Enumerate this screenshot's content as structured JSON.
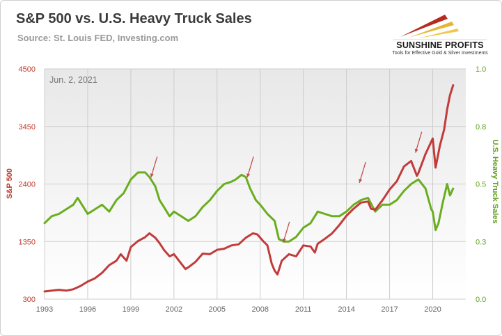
{
  "title": "S&P 500 vs. U.S. Heavy Truck Sales",
  "subtitle": "Source: St. Louis FED, Investing.com",
  "logo": {
    "name": "SUNSHINE PROFITS",
    "tagline": "Tools for Effective Gold & Silver Investments"
  },
  "colors": {
    "sp500": "#c23b3b",
    "trucks": "#6aad1f",
    "arrow": "#c0504d",
    "grid": "#cccccc",
    "left_axis_text": "#c0392b",
    "right_axis_text": "#5f9f1a"
  },
  "chart_data": {
    "type": "line",
    "annotation": "Jun. 2, 2021",
    "xlabel": "",
    "x_ticks": [
      "1993",
      "1996",
      "1999",
      "2002",
      "2005",
      "2008",
      "2011",
      "2014",
      "2017",
      "2020"
    ],
    "xlim": [
      1993,
      2022.3
    ],
    "y_left": {
      "label": "S&P 500",
      "ticks": [
        "300",
        "1350",
        "2400",
        "3450",
        "4500"
      ],
      "lim": [
        300,
        4500
      ]
    },
    "y_right": {
      "label": "U.S. Heavy Truck Sales",
      "ticks": [
        "0.0",
        "0.3",
        "0.5",
        "0.8",
        "1.0"
      ],
      "lim": [
        0,
        1.0
      ]
    },
    "grid": true,
    "series": [
      {
        "name": "S&P 500",
        "axis": "left",
        "x": [
          1993.0,
          1993.5,
          1994.0,
          1994.5,
          1995.0,
          1995.5,
          1996.0,
          1996.5,
          1997.0,
          1997.5,
          1998.0,
          1998.3,
          1998.7,
          1999.0,
          1999.5,
          2000.0,
          2000.3,
          2000.7,
          2001.0,
          2001.3,
          2001.7,
          2002.0,
          2002.5,
          2002.8,
          2003.0,
          2003.5,
          2004.0,
          2004.5,
          2005.0,
          2005.5,
          2006.0,
          2006.5,
          2007.0,
          2007.5,
          2007.8,
          2008.2,
          2008.5,
          2008.8,
          2009.0,
          2009.2,
          2009.5,
          2010.0,
          2010.5,
          2011.0,
          2011.5,
          2011.8,
          2012.0,
          2012.5,
          2013.0,
          2013.5,
          2014.0,
          2014.5,
          2015.0,
          2015.5,
          2015.7,
          2016.0,
          2016.5,
          2017.0,
          2017.5,
          2018.0,
          2018.5,
          2018.9,
          2019.0,
          2019.5,
          2020.0,
          2020.2,
          2020.5,
          2020.8,
          2021.0,
          2021.2,
          2021.42
        ],
        "values": [
          440,
          455,
          470,
          455,
          480,
          540,
          620,
          680,
          780,
          920,
          1000,
          1120,
          1000,
          1250,
          1360,
          1430,
          1500,
          1420,
          1320,
          1200,
          1080,
          1120,
          950,
          850,
          880,
          980,
          1130,
          1120,
          1200,
          1220,
          1280,
          1300,
          1420,
          1500,
          1480,
          1360,
          1280,
          950,
          820,
          750,
          1000,
          1120,
          1080,
          1280,
          1260,
          1150,
          1310,
          1400,
          1500,
          1650,
          1820,
          1950,
          2060,
          2080,
          1950,
          1930,
          2100,
          2300,
          2450,
          2720,
          2820,
          2550,
          2600,
          2950,
          3230,
          2700,
          3100,
          3400,
          3760,
          4020,
          4200
        ]
      },
      {
        "name": "U.S. Heavy Truck Sales",
        "axis": "right",
        "x": [
          1993.0,
          1993.5,
          1994.0,
          1994.5,
          1995.0,
          1995.3,
          1995.7,
          1996.0,
          1996.5,
          1997.0,
          1997.5,
          1998.0,
          1998.5,
          1999.0,
          1999.5,
          2000.0,
          2000.3,
          2000.7,
          2001.0,
          2001.3,
          2001.7,
          2002.0,
          2002.5,
          2003.0,
          2003.5,
          2004.0,
          2004.5,
          2005.0,
          2005.5,
          2006.0,
          2006.3,
          2006.7,
          2007.0,
          2007.3,
          2007.7,
          2008.0,
          2008.5,
          2009.0,
          2009.3,
          2009.7,
          2010.0,
          2010.5,
          2011.0,
          2011.5,
          2012.0,
          2012.5,
          2013.0,
          2013.5,
          2014.0,
          2014.5,
          2015.0,
          2015.5,
          2016.0,
          2016.5,
          2017.0,
          2017.5,
          2018.0,
          2018.5,
          2019.0,
          2019.5,
          2019.9,
          2020.0,
          2020.2,
          2020.4,
          2020.7,
          2021.0,
          2021.2,
          2021.42
        ],
        "values": [
          0.33,
          0.36,
          0.37,
          0.39,
          0.41,
          0.44,
          0.4,
          0.37,
          0.39,
          0.41,
          0.38,
          0.43,
          0.46,
          0.52,
          0.55,
          0.55,
          0.53,
          0.49,
          0.43,
          0.4,
          0.36,
          0.38,
          0.36,
          0.34,
          0.36,
          0.4,
          0.43,
          0.47,
          0.5,
          0.51,
          0.52,
          0.54,
          0.53,
          0.48,
          0.43,
          0.41,
          0.37,
          0.34,
          0.26,
          0.25,
          0.25,
          0.27,
          0.31,
          0.33,
          0.38,
          0.37,
          0.36,
          0.36,
          0.38,
          0.41,
          0.43,
          0.44,
          0.38,
          0.41,
          0.41,
          0.43,
          0.47,
          0.5,
          0.52,
          0.48,
          0.39,
          0.38,
          0.3,
          0.33,
          0.42,
          0.5,
          0.45,
          0.48
        ]
      }
    ],
    "arrows": [
      {
        "x": 2000.4,
        "y_left": 2520
      },
      {
        "x": 2007.1,
        "y_left": 2520
      },
      {
        "x": 2009.6,
        "y_left": 1330
      },
      {
        "x": 2014.9,
        "y_left": 2420
      },
      {
        "x": 2018.8,
        "y_left": 2970
      }
    ]
  }
}
